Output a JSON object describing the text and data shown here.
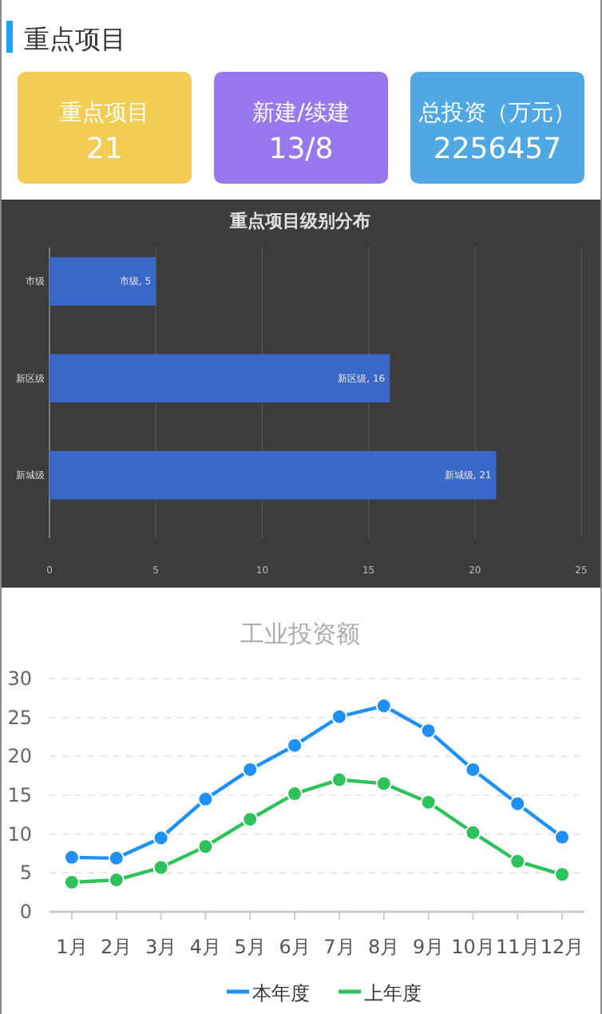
{
  "chart_data": [
    {
      "type": "other",
      "title": "重点项目",
      "annotations": [
        "重点项目",
        "21",
        "新建/续建",
        "13/8",
        "总投资（万元）",
        "2256457"
      ],
      "colors": [
        "#f2cc53",
        "#9878ef",
        "#50a8e2"
      ]
    },
    {
      "type": "bar",
      "orientation": "horizontal",
      "title": "重点项目级别分布",
      "categories": [
        "市级",
        "新区级",
        "新城级"
      ],
      "values": [
        5,
        16,
        21
      ],
      "value_labels": [
        "市级, 5",
        "新区级, 16",
        "新城级, 21"
      ],
      "color": "#3a68c8",
      "xlim": [
        0,
        25
      ],
      "xticks": [
        0,
        5,
        10,
        15,
        20,
        25
      ],
      "grid": "x"
    },
    {
      "type": "line",
      "title": "工业投资额",
      "categories": [
        "1月",
        "2月",
        "3月",
        "4月",
        "5月",
        "6月",
        "7月",
        "8月",
        "9月",
        "10月",
        "11月",
        "12月"
      ],
      "series": [
        {
          "name": "本年度",
          "color": "#1e90ff",
          "values": [
            7.0,
            6.9,
            9.5,
            14.5,
            18.3,
            21.4,
            25.1,
            26.5,
            23.3,
            18.3,
            13.9,
            9.6
          ]
        },
        {
          "name": "上年度",
          "color": "#2dc35a",
          "values": [
            3.8,
            4.1,
            5.7,
            8.4,
            11.9,
            15.2,
            17.0,
            16.5,
            14.1,
            10.2,
            6.5,
            4.8
          ]
        }
      ],
      "ylim": [
        0,
        30
      ],
      "yticks": [
        0,
        5,
        10,
        15,
        20,
        25,
        30
      ],
      "grid": "y",
      "legend": "bottom",
      "marker": "circle",
      "line_style": "solid"
    }
  ]
}
